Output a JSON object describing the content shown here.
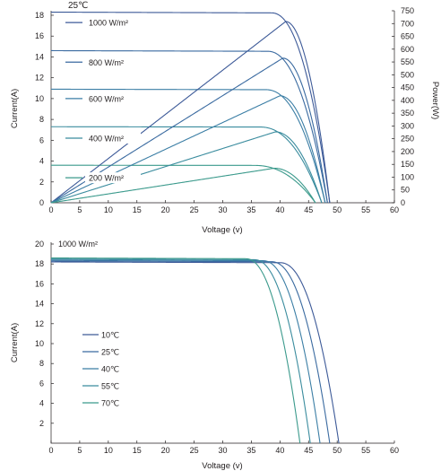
{
  "chart_data": [
    {
      "type": "line",
      "title": "25℃",
      "xlabel": "Voltage (v)",
      "ylabel": "Current(A)",
      "y2label": "Power(W)",
      "xlim": [
        0,
        60
      ],
      "ylim": [
        0,
        19
      ],
      "y2lim": [
        0,
        750
      ],
      "xticks": [
        "0",
        "5",
        "10",
        "15",
        "20",
        "25",
        "30",
        "35",
        "40",
        "45",
        "50",
        "55",
        "60"
      ],
      "yticks": [
        "0",
        "2",
        "4",
        "6",
        "8",
        "10",
        "12",
        "14",
        "16",
        "18"
      ],
      "y2ticks": [
        "0",
        "50",
        "100",
        "150",
        "200",
        "250",
        "300",
        "350",
        "400",
        "450",
        "500",
        "550",
        "600",
        "650",
        "700",
        "750"
      ],
      "colors": [
        "#3d5a98",
        "#3a6aa0",
        "#3b7ea5",
        "#3a8c9e",
        "#3b9a8c"
      ],
      "irradiance_labels": [
        {
          "text": "1000 W/m²",
          "y": 17.3
        },
        {
          "text": "800 W/m²",
          "y": 13.5
        },
        {
          "text": "600 W/m²",
          "y": 10.0
        },
        {
          "text": "400 W/m²",
          "y": 6.2
        },
        {
          "text": "200 W/m²",
          "y": 2.4
        }
      ],
      "iv_curves": [
        {
          "isc": 18.3,
          "knee": 38.5,
          "voc": 48.7,
          "color": "#3d5a98"
        },
        {
          "isc": 14.6,
          "knee": 37.8,
          "voc": 48.3,
          "color": "#3a6aa0"
        },
        {
          "isc": 10.9,
          "knee": 37.5,
          "voc": 47.9,
          "color": "#3b7ea5"
        },
        {
          "isc": 7.3,
          "knee": 36.5,
          "voc": 47.3,
          "color": "#3a8c9e"
        },
        {
          "isc": 3.6,
          "knee": 35.5,
          "voc": 46.2,
          "color": "#3b9a8c"
        }
      ],
      "pv_curves": [
        {
          "pmax": 708,
          "vmp": 41.0,
          "voc": 48.7,
          "color": "#3d5a98"
        },
        {
          "pmax": 565,
          "vmp": 40.5,
          "voc": 48.3,
          "color": "#3a6aa0"
        },
        {
          "pmax": 418,
          "vmp": 40.0,
          "voc": 47.9,
          "color": "#3b7ea5"
        },
        {
          "pmax": 277,
          "vmp": 39.2,
          "voc": 47.3,
          "color": "#3a8c9e"
        },
        {
          "pmax": 135,
          "vmp": 39.0,
          "voc": 46.2,
          "color": "#3b9a8c"
        }
      ]
    },
    {
      "type": "line",
      "title": "1000 W/m²",
      "xlabel": "Voltage (v)",
      "ylabel": "Current(A)",
      "xlim": [
        0,
        60
      ],
      "ylim": [
        0,
        20
      ],
      "xticks": [
        "0",
        "5",
        "10",
        "15",
        "20",
        "25",
        "30",
        "35",
        "40",
        "45",
        "50",
        "55",
        "60"
      ],
      "yticks": [
        "2",
        "4",
        "6",
        "8",
        "10",
        "12",
        "14",
        "16",
        "18",
        "20"
      ],
      "series": [
        {
          "name": "10℃",
          "isc": 18.2,
          "knee": 40.0,
          "voc": 50.3,
          "color": "#3d5a98"
        },
        {
          "name": "25℃",
          "isc": 18.3,
          "knee": 38.5,
          "voc": 48.7,
          "color": "#3a6aa0"
        },
        {
          "name": "40℃",
          "isc": 18.4,
          "knee": 37.0,
          "voc": 47.0,
          "color": "#3b7ea5"
        },
        {
          "name": "55℃",
          "isc": 18.5,
          "knee": 35.5,
          "voc": 45.3,
          "color": "#3a8c9e"
        },
        {
          "name": "70℃",
          "isc": 18.6,
          "knee": 34.0,
          "voc": 43.5,
          "color": "#3b9a8c"
        }
      ]
    }
  ]
}
